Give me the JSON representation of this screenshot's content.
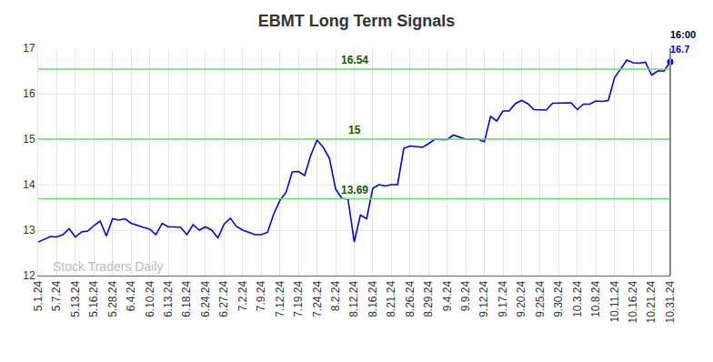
{
  "chart_data": {
    "type": "line",
    "title": "EBMT Long Term Signals",
    "categories": [
      "5.1.24",
      null,
      null,
      "5.7.24",
      null,
      null,
      "5.13.24",
      null,
      null,
      "5.16.24",
      null,
      null,
      "5.28.24",
      null,
      null,
      "6.4.24",
      null,
      null,
      "6.10.24",
      null,
      null,
      "6.13.24",
      null,
      null,
      "6.18.24",
      null,
      null,
      "6.24.24",
      null,
      null,
      "6.27.24",
      null,
      null,
      "7.2.24",
      null,
      null,
      "7.9.24",
      null,
      null,
      "7.12.24",
      null,
      null,
      "7.19.24",
      null,
      null,
      "7.24.24",
      null,
      null,
      "8.2.24",
      null,
      null,
      "8.12.24",
      null,
      null,
      "8.16.24",
      null,
      null,
      "8.21.24",
      null,
      null,
      "8.26.24",
      null,
      null,
      "8.29.24",
      null,
      null,
      "9.4.24",
      null,
      null,
      "9.9.24",
      null,
      null,
      "9.12.24",
      null,
      null,
      "9.17.24",
      null,
      null,
      "9.20.24",
      null,
      null,
      "9.25.24",
      null,
      null,
      "9.30.24",
      null,
      null,
      "10.3.24",
      null,
      null,
      "10.8.24",
      null,
      null,
      "10.11.24",
      null,
      null,
      "10.16.24",
      null,
      null,
      "10.21.24",
      null,
      null,
      "10.31.24"
    ],
    "values": [
      12.74,
      12.8,
      12.86,
      12.85,
      12.9,
      13.03,
      12.85,
      12.96,
      12.98,
      13.1,
      13.2,
      12.87,
      13.25,
      13.22,
      13.25,
      13.15,
      13.1,
      13.06,
      13.02,
      12.9,
      13.15,
      13.07,
      13.07,
      13.06,
      12.9,
      13.12,
      13.0,
      13.07,
      13.0,
      12.83,
      13.13,
      13.26,
      13.08,
      13.0,
      12.95,
      12.9,
      12.9,
      12.95,
      13.35,
      13.65,
      13.83,
      14.28,
      14.29,
      14.2,
      14.65,
      14.98,
      14.82,
      14.58,
      13.9,
      13.7,
      13.68,
      12.74,
      13.33,
      13.25,
      13.92,
      14.0,
      13.97,
      14.0,
      14.0,
      14.8,
      14.85,
      14.84,
      14.82,
      14.9,
      15.0,
      14.99,
      14.99,
      15.09,
      15.05,
      15.0,
      15.0,
      15.0,
      14.94,
      15.5,
      15.4,
      15.62,
      15.62,
      15.78,
      15.85,
      15.78,
      15.65,
      15.64,
      15.64,
      15.79,
      15.79,
      15.8,
      15.8,
      15.65,
      15.77,
      15.77,
      15.84,
      15.83,
      15.85,
      16.35,
      16.55,
      16.74,
      16.68,
      16.67,
      16.69,
      16.41,
      16.5,
      16.5,
      16.7
    ],
    "color": "#0000ee",
    "levels": [
      16.54,
      15,
      13.69
    ],
    "annotations": [
      "16:00"
    ],
    "watermark": "Stock Traders Daily",
    "ylim": [
      12,
      17
    ],
    "yticks": [
      12,
      13,
      14,
      15,
      16,
      17
    ],
    "grid": true
  }
}
